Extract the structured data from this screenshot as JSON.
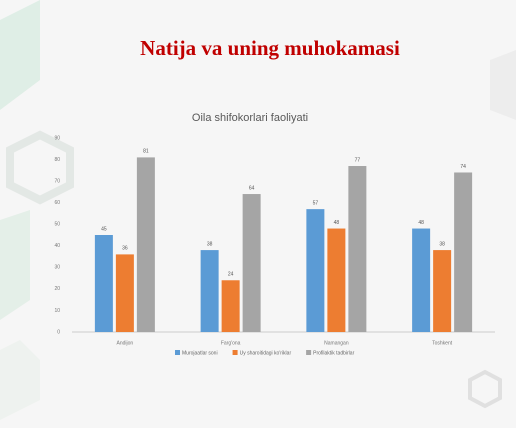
{
  "header": {
    "title": "Natija va uning muhokamasi"
  },
  "chart_data": {
    "type": "bar",
    "title": "Oila shifokorlari faoliyati",
    "categories": [
      "Andijon",
      "Farg'ona",
      "Namangan",
      "Toshkent"
    ],
    "series": [
      {
        "name": "Murojaatlar soni",
        "color": "#5b9bd5",
        "values": [
          45,
          38,
          57,
          48
        ]
      },
      {
        "name": "Uy sharoitidagi ko'riklar",
        "color": "#ed7d31",
        "values": [
          36,
          24,
          48,
          38
        ]
      },
      {
        "name": "Profilaktik tadbirlar",
        "color": "#a5a5a5",
        "values": [
          81,
          64,
          77,
          74
        ]
      }
    ],
    "ylim": [
      0,
      90
    ],
    "yticks": [
      0,
      10,
      20,
      30,
      40,
      50,
      60,
      70,
      80,
      90
    ],
    "grid": false,
    "legend": "bottom"
  }
}
